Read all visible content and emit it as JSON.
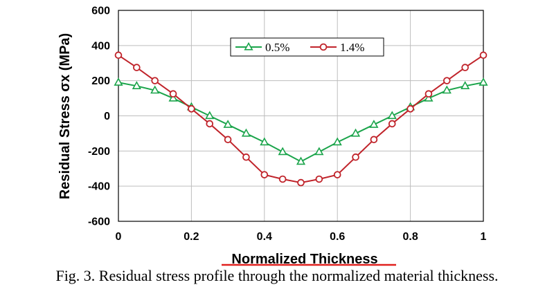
{
  "caption": "Fig. 3. Residual stress profile through the normalized material thickness.",
  "chart_data": {
    "type": "line",
    "title": "",
    "xlabel": "Normalized Thickness",
    "ylabel": "Residual Stress σx (MPa)",
    "xlim": [
      0,
      1
    ],
    "ylim": [
      -600,
      600
    ],
    "x_ticks": [
      "0",
      "0.2",
      "0.4",
      "0.6",
      "0.8",
      "1"
    ],
    "y_ticks": [
      "-600",
      "-400",
      "-200",
      "0",
      "200",
      "400",
      "600"
    ],
    "grid": true,
    "legend_position": "top-center",
    "series": [
      {
        "name": "0.5%",
        "color": "#1aa44a",
        "marker": "triangle",
        "x": [
          0,
          0.05,
          0.1,
          0.15,
          0.2,
          0.25,
          0.3,
          0.35,
          0.4,
          0.45,
          0.5,
          0.55,
          0.6,
          0.65,
          0.7,
          0.75,
          0.8,
          0.85,
          0.9,
          0.95,
          1
        ],
        "y": [
          190,
          170,
          145,
          100,
          50,
          0,
          -50,
          -100,
          -150,
          -205,
          -260,
          -205,
          -150,
          -100,
          -50,
          0,
          50,
          100,
          145,
          170,
          190
        ]
      },
      {
        "name": "1.4%",
        "color": "#c0232a",
        "marker": "circle",
        "x": [
          0,
          0.05,
          0.1,
          0.15,
          0.2,
          0.25,
          0.3,
          0.35,
          0.4,
          0.45,
          0.5,
          0.55,
          0.6,
          0.65,
          0.7,
          0.75,
          0.8,
          0.85,
          0.9,
          0.95,
          1
        ],
        "y": [
          345,
          275,
          200,
          125,
          40,
          -45,
          -135,
          -235,
          -335,
          -360,
          -380,
          -360,
          -335,
          -235,
          -135,
          -45,
          40,
          125,
          200,
          275,
          345
        ]
      }
    ]
  }
}
